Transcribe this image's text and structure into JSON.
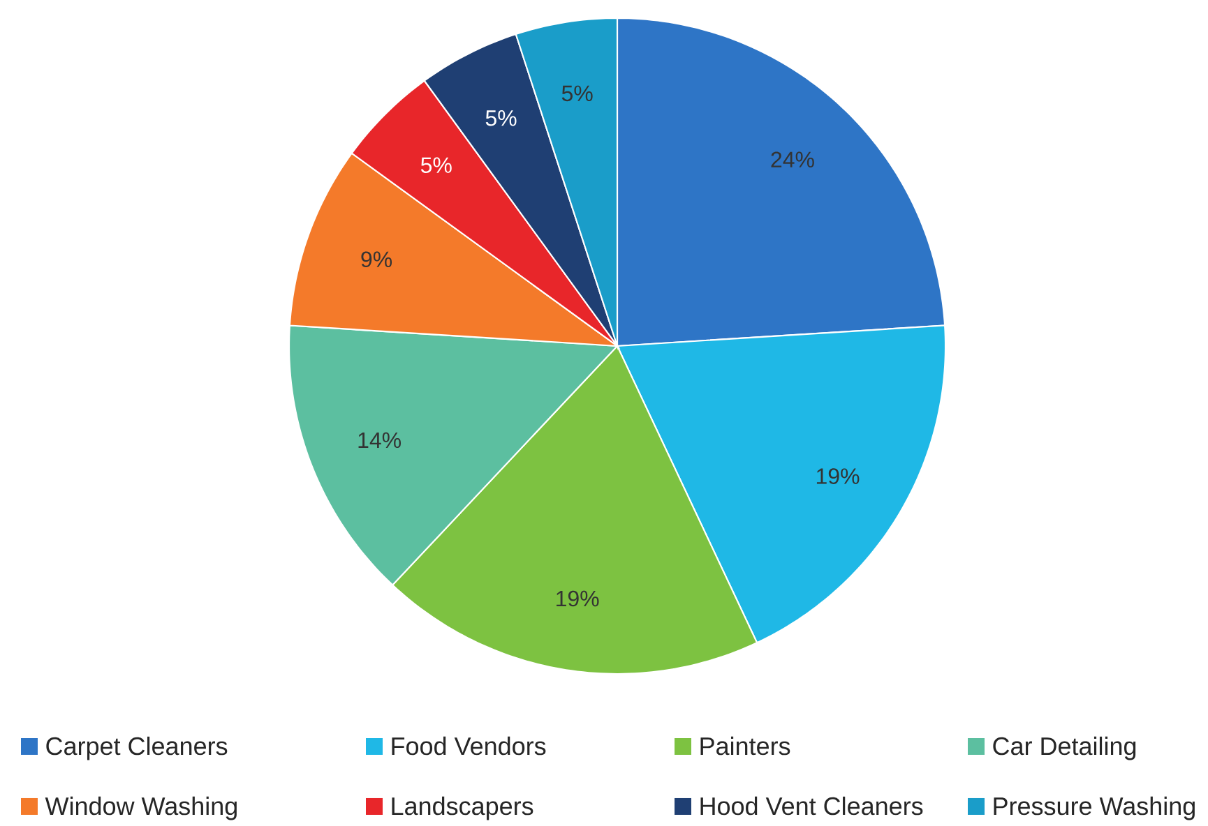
{
  "chart_data": {
    "type": "pie",
    "categories": [
      "Carpet Cleaners",
      "Food Vendors",
      "Painters",
      "Car Detailing",
      "Window Washing",
      "Landscapers",
      "Hood Vent Cleaners",
      "Pressure Washing"
    ],
    "values": [
      24,
      19,
      19,
      14,
      9,
      5,
      5,
      5
    ],
    "value_labels": [
      "24%",
      "19%",
      "19%",
      "14%",
      "9%",
      "5%",
      "5%",
      "5%"
    ],
    "colors": [
      "#2e75c6",
      "#1fb8e6",
      "#7dc241",
      "#5cbfa0",
      "#f47a2a",
      "#e8262a",
      "#1f3f73",
      "#1a9dc9"
    ],
    "legend": "bottom"
  }
}
